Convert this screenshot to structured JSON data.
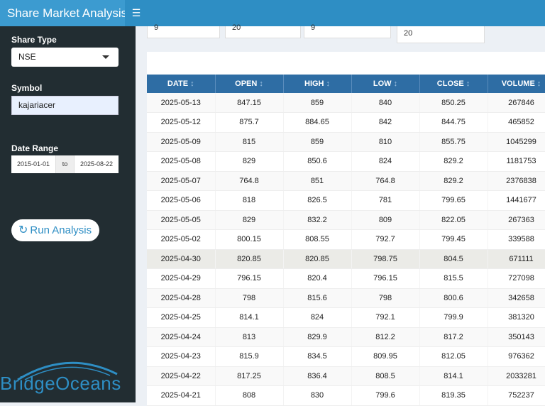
{
  "header": {
    "title": "Share Market Analysis",
    "menu_icon": "hamburger-icon"
  },
  "sidebar": {
    "share_type_label": "Share Type",
    "share_type_value": "NSE",
    "symbol_label": "Symbol",
    "symbol_value": "kajariacer",
    "date_range_label": "Date Range",
    "date_from": "2015-01-01",
    "date_sep": "to",
    "date_to": "2025-08-22",
    "run_label": "Run Analysis",
    "logo_text": "BridgeOceans"
  },
  "top_inputs": [
    "9",
    "20",
    "9",
    "20"
  ],
  "table": {
    "columns": [
      "DATE",
      "OPEN",
      "HIGH",
      "LOW",
      "CLOSE",
      "VOLUME"
    ],
    "sort_icon": "↕",
    "rows": [
      [
        "2025-05-13",
        "847.15",
        "859",
        "840",
        "850.25",
        "267846"
      ],
      [
        "2025-05-12",
        "875.7",
        "884.65",
        "842",
        "844.75",
        "465852"
      ],
      [
        "2025-05-09",
        "815",
        "859",
        "810",
        "855.75",
        "1045299"
      ],
      [
        "2025-05-08",
        "829",
        "850.6",
        "824",
        "829.2",
        "1181753"
      ],
      [
        "2025-05-07",
        "764.8",
        "851",
        "764.8",
        "829.2",
        "2376838"
      ],
      [
        "2025-05-06",
        "818",
        "826.5",
        "781",
        "799.65",
        "1441677"
      ],
      [
        "2025-05-05",
        "829",
        "832.2",
        "809",
        "822.05",
        "267363"
      ],
      [
        "2025-05-02",
        "800.15",
        "808.55",
        "792.7",
        "799.45",
        "339588"
      ],
      [
        "2025-04-30",
        "820.85",
        "820.85",
        "798.75",
        "804.5",
        "671111"
      ],
      [
        "2025-04-29",
        "796.15",
        "820.4",
        "796.15",
        "815.5",
        "727098"
      ],
      [
        "2025-04-28",
        "798",
        "815.6",
        "798",
        "800.6",
        "342658"
      ],
      [
        "2025-04-25",
        "814.1",
        "824",
        "792.1",
        "799.9",
        "381320"
      ],
      [
        "2025-04-24",
        "813",
        "829.9",
        "812.2",
        "817.2",
        "350143"
      ],
      [
        "2025-04-23",
        "815.9",
        "834.5",
        "809.95",
        "812.05",
        "976362"
      ],
      [
        "2025-04-22",
        "817.25",
        "836.4",
        "808.5",
        "814.1",
        "2033281"
      ],
      [
        "2025-04-21",
        "808",
        "830",
        "799.6",
        "819.35",
        "752237"
      ]
    ]
  }
}
